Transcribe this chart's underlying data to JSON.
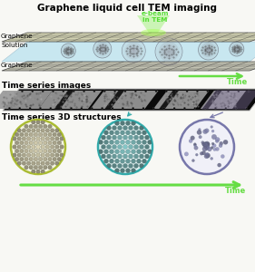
{
  "title": "Graphene liquid cell TEM imaging",
  "title_fontsize": 7.5,
  "title_fontweight": "bold",
  "ebeam_label": "e-beam\nin TEM",
  "ebeam_color": "#55dd33",
  "graphene_label": "Graphene",
  "solution_label": "Solution",
  "time_series_images_label": "Time series images",
  "time_series_3d_label": "Time series 3D structures",
  "time_label": "Time",
  "label_fontsize": 6.5,
  "small_fontsize": 5.2,
  "time_fontsize": 6.0,
  "bg_color": "#f8f8f4",
  "arrow_color": "#66dd44",
  "circle1_color": "#aabb33",
  "circle2_color": "#33aaaa",
  "circle3_color": "#7777aa",
  "solution_fill": "#c0e4f0",
  "graphene_top_color": "#ccccaa",
  "graphene_bot_color": "#bbbbaa"
}
